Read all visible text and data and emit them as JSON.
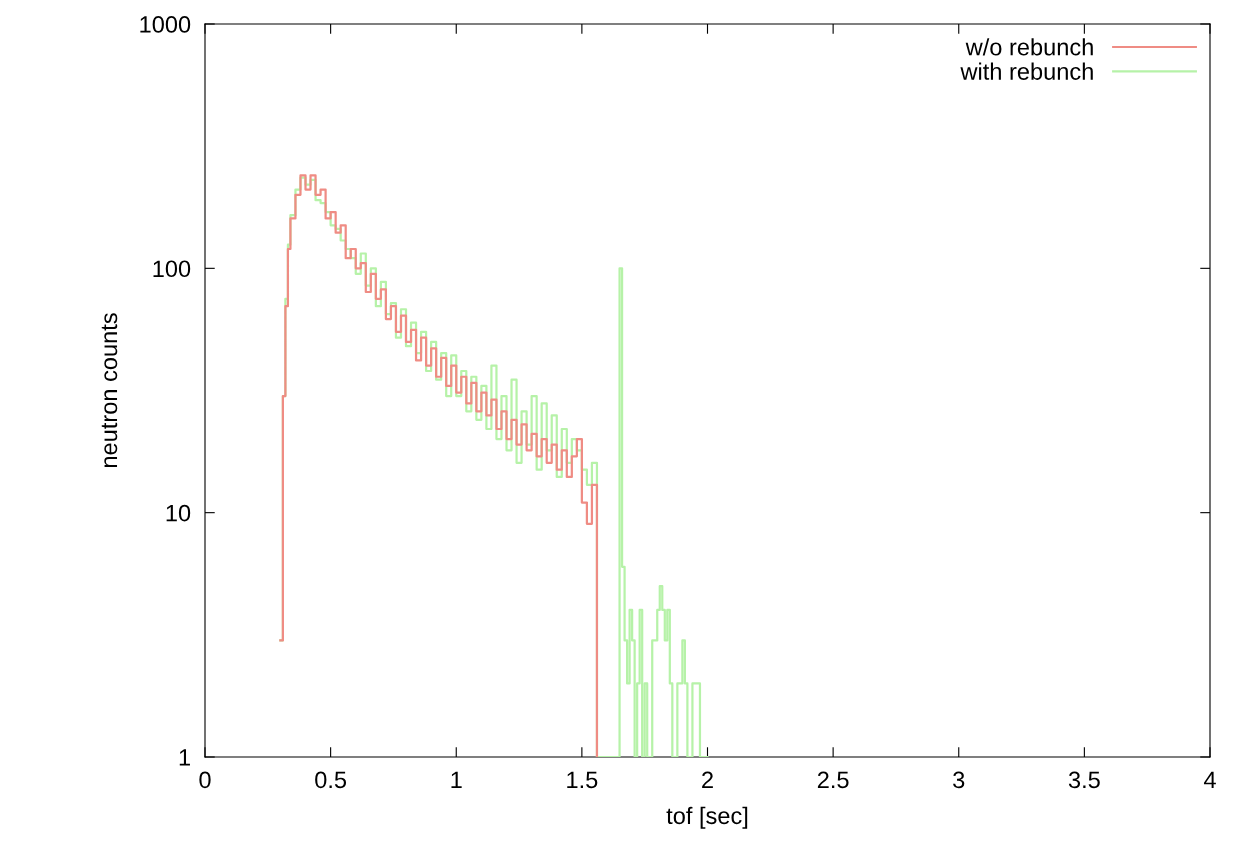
{
  "chart_data": {
    "type": "step",
    "xlabel": "tof [sec]",
    "ylabel": "neutron counts",
    "log": "y",
    "grid": false,
    "legend": "top right",
    "xlim": [
      0,
      4
    ],
    "xticks": [
      0,
      0.5,
      1,
      1.5,
      2,
      2.5,
      3,
      3.5,
      4
    ],
    "ylim": [
      1,
      1000
    ],
    "yticks": [
      1,
      10,
      100,
      1000
    ],
    "series": [
      {
        "name": "w/o rebunch",
        "color": "#ef8c84",
        "x": [
          0.3,
          0.31,
          0.32,
          0.33,
          0.34,
          0.36,
          0.38,
          0.4,
          0.42,
          0.44,
          0.46,
          0.48,
          0.5,
          0.52,
          0.54,
          0.56,
          0.58,
          0.6,
          0.62,
          0.64,
          0.66,
          0.68,
          0.7,
          0.72,
          0.74,
          0.76,
          0.78,
          0.8,
          0.82,
          0.84,
          0.86,
          0.88,
          0.9,
          0.92,
          0.94,
          0.96,
          0.98,
          1.0,
          1.02,
          1.04,
          1.06,
          1.08,
          1.1,
          1.12,
          1.14,
          1.16,
          1.18,
          1.2,
          1.22,
          1.24,
          1.26,
          1.28,
          1.3,
          1.32,
          1.34,
          1.36,
          1.38,
          1.4,
          1.42,
          1.44,
          1.46,
          1.48,
          1.5,
          1.52,
          1.54,
          1.56
        ],
        "values": [
          3,
          30,
          70,
          120,
          160,
          200,
          240,
          210,
          240,
          200,
          210,
          160,
          170,
          140,
          150,
          110,
          120,
          100,
          105,
          80,
          95,
          75,
          82,
          62,
          70,
          55,
          64,
          50,
          56,
          42,
          52,
          40,
          47,
          36,
          43,
          33,
          40,
          31,
          36,
          28,
          34,
          26,
          31,
          25,
          29,
          22,
          26,
          20,
          24,
          19,
          23,
          18,
          21,
          17,
          20,
          16,
          19,
          15,
          18,
          14,
          17,
          20,
          11,
          9,
          13,
          1
        ]
      },
      {
        "name": "with rebunch",
        "color": "#b6f2a8",
        "x": [
          0.3,
          0.31,
          0.32,
          0.33,
          0.34,
          0.36,
          0.38,
          0.4,
          0.42,
          0.44,
          0.46,
          0.48,
          0.5,
          0.52,
          0.54,
          0.56,
          0.58,
          0.6,
          0.62,
          0.64,
          0.66,
          0.68,
          0.7,
          0.72,
          0.74,
          0.76,
          0.78,
          0.8,
          0.82,
          0.84,
          0.86,
          0.88,
          0.9,
          0.92,
          0.94,
          0.96,
          0.98,
          1.0,
          1.02,
          1.04,
          1.06,
          1.08,
          1.1,
          1.12,
          1.14,
          1.16,
          1.18,
          1.2,
          1.22,
          1.24,
          1.26,
          1.28,
          1.3,
          1.32,
          1.34,
          1.36,
          1.38,
          1.4,
          1.42,
          1.44,
          1.46,
          1.48,
          1.5,
          1.52,
          1.54,
          1.56,
          1.65,
          1.66,
          1.67,
          1.68,
          1.69,
          1.7,
          1.71,
          1.72,
          1.73,
          1.74,
          1.75,
          1.76,
          1.78,
          1.8,
          1.81,
          1.82,
          1.83,
          1.84,
          1.85,
          1.86,
          1.88,
          1.9,
          1.91,
          1.92,
          1.94,
          1.96,
          1.97,
          2.0
        ],
        "values": [
          3,
          30,
          75,
          125,
          165,
          210,
          235,
          220,
          230,
          190,
          185,
          170,
          150,
          145,
          130,
          120,
          110,
          95,
          115,
          85,
          100,
          70,
          88,
          65,
          72,
          52,
          68,
          48,
          60,
          45,
          55,
          38,
          50,
          35,
          45,
          30,
          44,
          30,
          38,
          26,
          36,
          24,
          33,
          22,
          40,
          20,
          30,
          18,
          35,
          16,
          26,
          19,
          30,
          15,
          28,
          18,
          25,
          14,
          22,
          16,
          20,
          18,
          15,
          13,
          16,
          1,
          100,
          6,
          3,
          2,
          4,
          3,
          1,
          2,
          4,
          1,
          2,
          1,
          3,
          4,
          5,
          4,
          3,
          4,
          2,
          1,
          2,
          3,
          2,
          1,
          2,
          2,
          1,
          1
        ]
      }
    ]
  }
}
